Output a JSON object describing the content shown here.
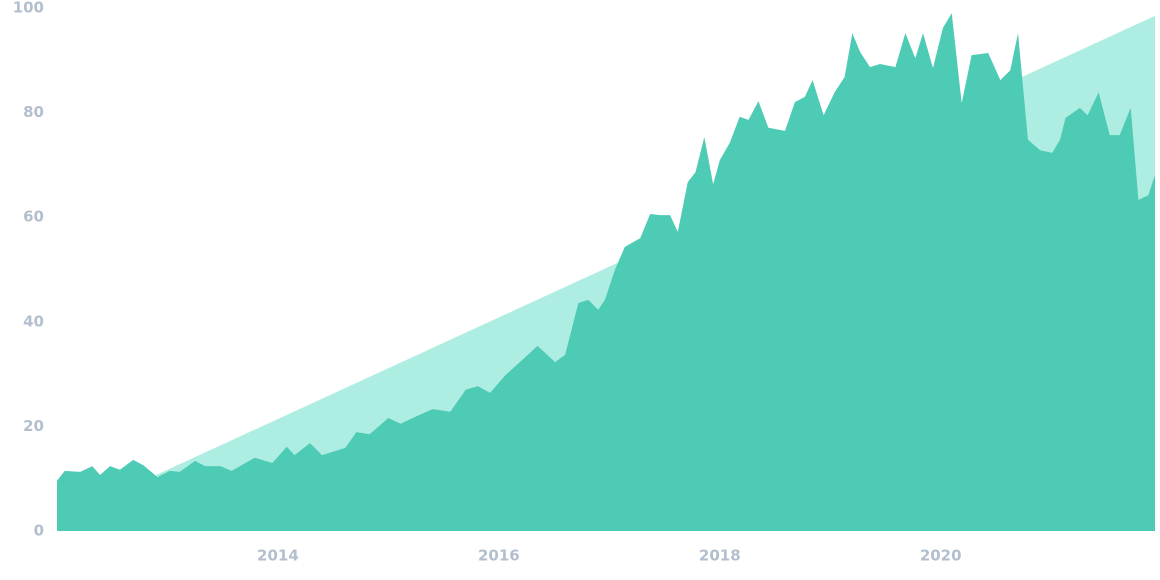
{
  "chart_data": {
    "type": "area",
    "xlim": [
      2012.0,
      2021.94
    ],
    "xticks": [
      2014,
      2016,
      2018,
      2020
    ],
    "ylim": [
      0,
      100
    ],
    "yticks": [
      0,
      20,
      40,
      60,
      80,
      100
    ],
    "grid": false,
    "series": [
      {
        "color": "#aeede1",
        "x": [
          2012.0,
          2021.94
        ],
        "values": [
          2,
          98.5
        ]
      },
      {
        "color": "#4ecbb4",
        "x": [
          2012.0,
          2012.07,
          2012.21,
          2012.32,
          2012.39,
          2012.48,
          2012.57,
          2012.69,
          2012.78,
          2012.91,
          2013.02,
          2013.11,
          2013.25,
          2013.34,
          2013.48,
          2013.58,
          2013.79,
          2013.95,
          2014.08,
          2014.15,
          2014.29,
          2014.4,
          2014.52,
          2014.61,
          2014.71,
          2014.83,
          2015.0,
          2015.11,
          2015.24,
          2015.4,
          2015.56,
          2015.7,
          2015.81,
          2015.92,
          2016.06,
          2016.19,
          2016.35,
          2016.51,
          2016.6,
          2016.72,
          2016.81,
          2016.9,
          2016.96,
          2017.05,
          2017.14,
          2017.28,
          2017.37,
          2017.46,
          2017.55,
          2017.62,
          2017.71,
          2017.78,
          2017.86,
          2017.94,
          2018.0,
          2018.09,
          2018.18,
          2018.26,
          2018.35,
          2018.44,
          2018.59,
          2018.68,
          2018.77,
          2018.84,
          2018.94,
          2019.04,
          2019.13,
          2019.2,
          2019.27,
          2019.36,
          2019.45,
          2019.59,
          2019.68,
          2019.77,
          2019.84,
          2019.93,
          2020.02,
          2020.1,
          2020.19,
          2020.28,
          2020.43,
          2020.54,
          2020.63,
          2020.7,
          2020.79,
          2020.9,
          2021.01,
          2021.08,
          2021.13,
          2021.26,
          2021.33,
          2021.43,
          2021.53,
          2021.62,
          2021.72,
          2021.79,
          2021.88,
          2021.94
        ],
        "values": [
          9.6,
          11.5,
          11.3,
          12.4,
          10.7,
          12.4,
          11.7,
          13.6,
          12.6,
          10.3,
          11.5,
          11.3,
          13.4,
          12.4,
          12.4,
          11.5,
          14.0,
          13.0,
          16.1,
          14.5,
          16.8,
          14.5,
          15.3,
          15.9,
          18.9,
          18.5,
          21.6,
          20.5,
          21.8,
          23.3,
          22.8,
          27.0,
          27.7,
          26.4,
          29.8,
          32.3,
          35.4,
          32.3,
          33.7,
          43.6,
          44.2,
          42.3,
          44.2,
          49.9,
          54.3,
          56.0,
          60.6,
          60.4,
          60.4,
          57.2,
          66.7,
          68.6,
          75.3,
          66.3,
          70.9,
          74.2,
          79.2,
          78.6,
          82.2,
          77.1,
          76.5,
          82.0,
          83.0,
          86.2,
          79.5,
          83.9,
          86.8,
          95.2,
          91.6,
          88.7,
          89.3,
          88.7,
          95.2,
          90.4,
          95.2,
          88.5,
          96.2,
          99.0,
          81.8,
          91.0,
          91.4,
          86.2,
          88.1,
          95.2,
          74.8,
          72.8,
          72.3,
          74.8,
          79.0,
          80.9,
          79.5,
          83.9,
          75.7,
          75.7,
          80.9,
          63.3,
          64.2,
          68.1
        ]
      }
    ]
  }
}
